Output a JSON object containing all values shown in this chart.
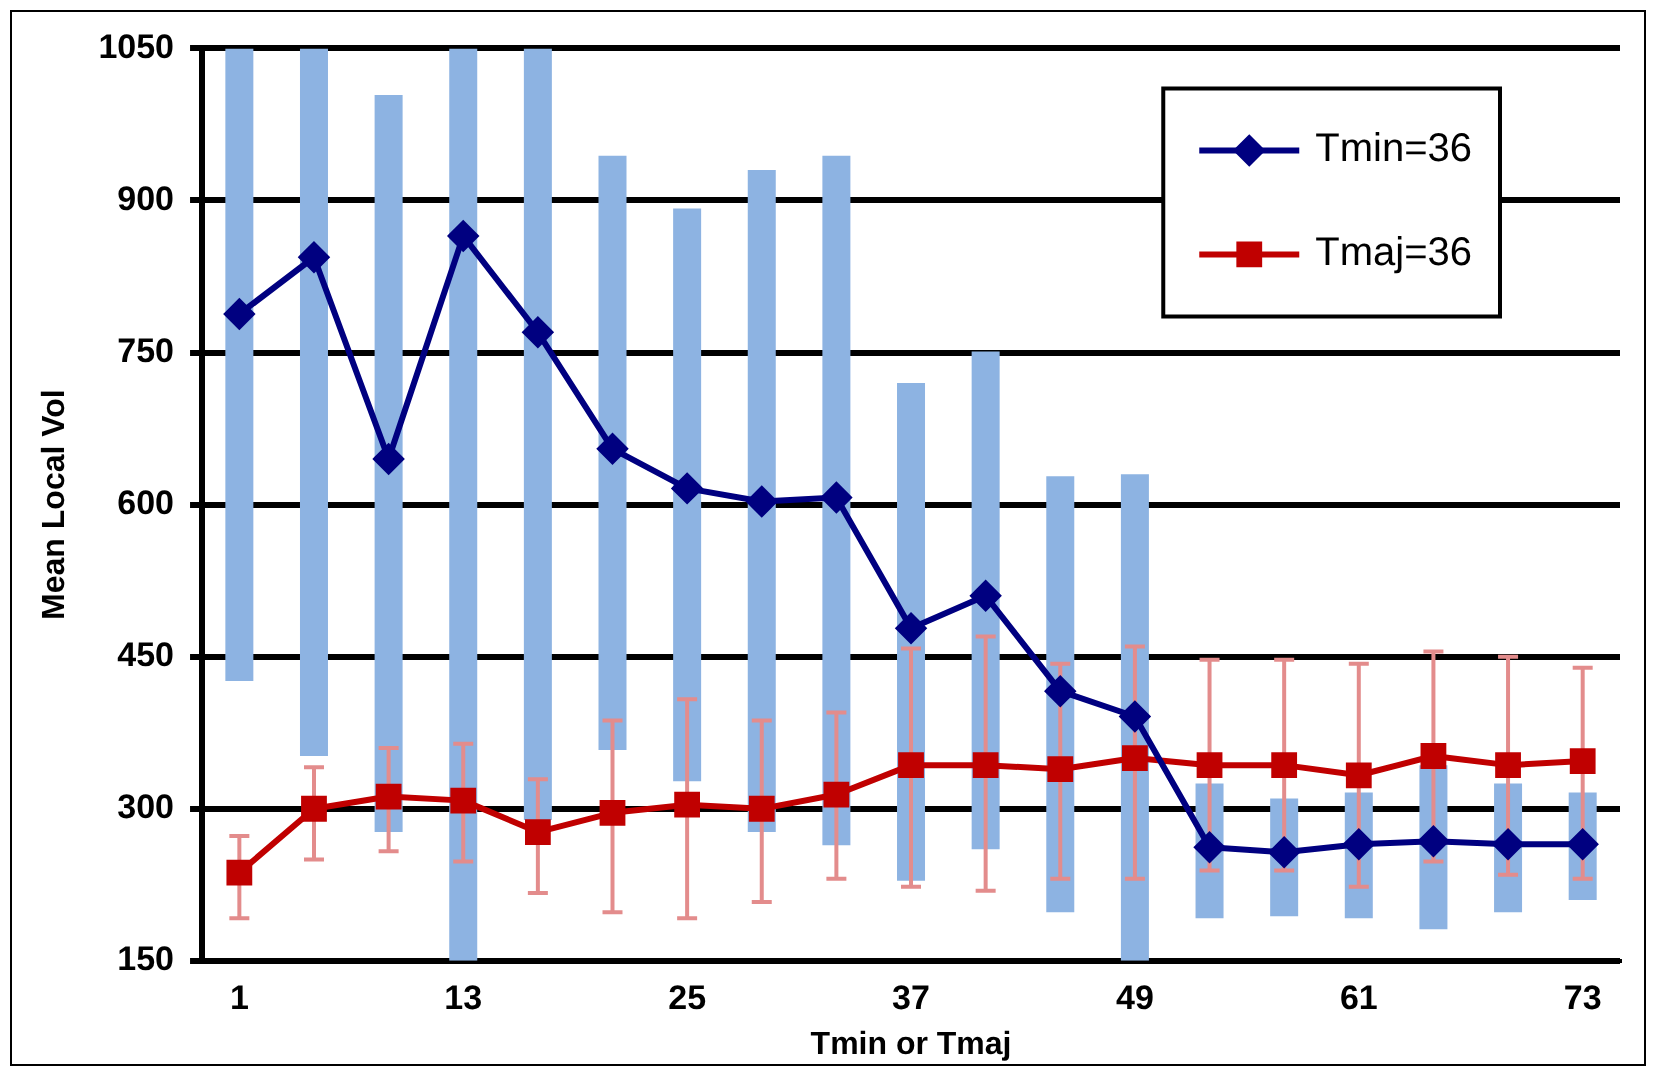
{
  "chart_data": {
    "type": "line",
    "xlabel": "Tmin or Tmaj",
    "ylabel": "Mean Local Vol",
    "x": [
      1,
      5,
      9,
      13,
      17,
      21,
      25,
      29,
      33,
      37,
      41,
      45,
      49,
      53,
      57,
      61,
      65,
      69,
      73
    ],
    "xlim": [
      -1,
      75
    ],
    "xticks": [
      1,
      13,
      25,
      37,
      49,
      61,
      73
    ],
    "ylim": [
      150,
      1050
    ],
    "yticks": [
      150,
      300,
      450,
      600,
      750,
      900,
      1050
    ],
    "grid": "y",
    "legend": "top right",
    "line_style": "solid",
    "series": [
      {
        "name": "Tmin=36",
        "color": "#000080",
        "marker": "diamond",
        "values": [
          788,
          844,
          645,
          865,
          770,
          655,
          616,
          603,
          607,
          478,
          510,
          416,
          391,
          262,
          257,
          265,
          268,
          265,
          265
        ],
        "errors": [
          [
            426,
            1050
          ],
          [
            352,
            1050
          ],
          [
            277,
            1004
          ],
          [
            150,
            1050
          ],
          [
            289,
            1050
          ],
          [
            358,
            944
          ],
          [
            327,
            892
          ],
          [
            277,
            930
          ],
          [
            264,
            944
          ],
          [
            229,
            720
          ],
          [
            260,
            751
          ],
          [
            198,
            628
          ],
          [
            150,
            630
          ],
          [
            192,
            325
          ],
          [
            194,
            310
          ],
          [
            192,
            316
          ],
          [
            181,
            343
          ],
          [
            198,
            325
          ],
          [
            210,
            316
          ]
        ]
      },
      {
        "name": "Tmaj=36",
        "color": "#c00000",
        "marker": "square",
        "values": [
          237,
          300,
          312,
          308,
          277,
          296,
          304,
          300,
          314,
          343,
          343,
          339,
          350,
          343,
          343,
          333,
          352,
          343,
          347
        ],
        "errors": [
          [
            192,
            273
          ],
          [
            250,
            341
          ],
          [
            258,
            360
          ],
          [
            248,
            364
          ],
          [
            217,
            329
          ],
          [
            198,
            387
          ],
          [
            192,
            408
          ],
          [
            208,
            387
          ],
          [
            231,
            395
          ],
          [
            223,
            458
          ],
          [
            219,
            470
          ],
          [
            231,
            443
          ],
          [
            231,
            460
          ],
          [
            239,
            447
          ],
          [
            239,
            447
          ],
          [
            223,
            443
          ],
          [
            248,
            455
          ],
          [
            235,
            450
          ],
          [
            231,
            439
          ]
        ]
      }
    ]
  }
}
